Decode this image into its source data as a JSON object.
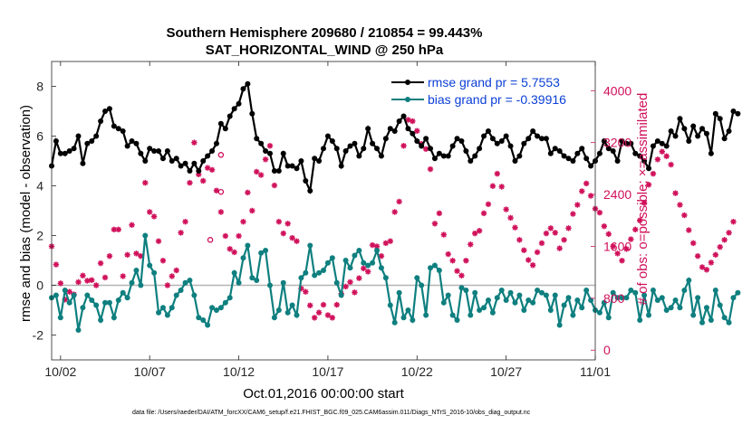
{
  "chart_data": {
    "type": "line",
    "title": "Southern Hemisphere 209680 / 210854 = 99.443%",
    "subtitle": "SAT_HORIZONTAL_WIND @ 250 hPa",
    "xlabel": "Oct.01,2016 00:00:00 start",
    "ylabel": "rmse and bias (model - observation)",
    "ylabel_right": "# of obs: o=possible; ×=assimilated",
    "footnote": "data file: /Users/raeder/DAI/ATM_forcXX/CAM6_setup/f.e21.FHIST_BGC.f09_025.CAM6assim.011/Diags_NTrS_2016-10/obs_diag_output.nc",
    "x_ticks": [
      "10/02",
      "10/07",
      "10/12",
      "10/17",
      "10/22",
      "10/27",
      "11/01"
    ],
    "x_tick_days": [
      1,
      6,
      11,
      16,
      21,
      26,
      31
    ],
    "xlim": [
      0.5,
      31
    ],
    "y_ticks": [
      -2,
      0,
      2,
      4,
      6,
      8
    ],
    "ylim": [
      -3,
      9
    ],
    "y2_ticks": [
      0,
      800,
      1600,
      2400,
      3200,
      4000
    ],
    "ylim2": [
      -150,
      4450
    ],
    "zero_line": true,
    "legend": [
      {
        "label": "rmse grand pr = 5.7553",
        "color": "#000000"
      },
      {
        "label": "bias grand pr = -0.39916",
        "color": "#0f7f7f"
      }
    ],
    "colors": {
      "rmse": "#000000",
      "bias": "#0f7f7f",
      "obs": "#d0105a",
      "axis_right": "#d0105a",
      "legend_text": "#0b3fd6"
    },
    "series": [
      {
        "name": "rmse grand pr = 5.7553",
        "x_start_day": 0.5,
        "dx": 0.25,
        "values": [
          4.8,
          5.8,
          5.3,
          5.3,
          5.4,
          5.5,
          6.0,
          4.9,
          5.7,
          5.8,
          6.0,
          6.6,
          7.0,
          7.1,
          6.4,
          6.3,
          6.2,
          5.6,
          5.8,
          5.7,
          5.3,
          5.0,
          5.5,
          5.4,
          5.4,
          5.1,
          5.4,
          5.0,
          5.1,
          4.8,
          4.9,
          4.6,
          4.9,
          4.6,
          5.0,
          5.2,
          5.4,
          5.7,
          6.5,
          6.3,
          6.8,
          7.1,
          7.3,
          7.9,
          8.1,
          6.9,
          5.9,
          5.7,
          5.4,
          5.3,
          4.6,
          4.6,
          5.3,
          4.8,
          4.8,
          4.7,
          5.0,
          4.2,
          3.8,
          5.1,
          5.0,
          5.5,
          6.0,
          5.8,
          5.5,
          4.8,
          5.4,
          5.6,
          5.7,
          5.2,
          5.5,
          6.3,
          5.7,
          5.5,
          5.2,
          5.9,
          6.3,
          6.2,
          6.6,
          6.8,
          6.3,
          6.1,
          5.8,
          5.6,
          5.9,
          5.5,
          5.1,
          5.3,
          5.2,
          5.2,
          5.6,
          5.9,
          5.8,
          5.4,
          5.0,
          5.2,
          5.5,
          6.0,
          6.2,
          5.9,
          5.7,
          5.8,
          6.0,
          5.6,
          5.0,
          5.2,
          5.7,
          5.9,
          6.2,
          6.0,
          5.9,
          5.9,
          5.3,
          5.5,
          5.4,
          5.2,
          5.1,
          5.0,
          5.3,
          5.5,
          5.1,
          4.8,
          5.0,
          5.3,
          5.8,
          5.5,
          5.4,
          5.0,
          5.8,
          5.7,
          5.7,
          5.3,
          5.2,
          5.0,
          4.7,
          5.6,
          5.8,
          5.7,
          5.6,
          6.2,
          6.0,
          6.7,
          6.3,
          5.8,
          6.4,
          6.0,
          6.3,
          6.1,
          5.3,
          6.9,
          6.7,
          5.9,
          6.2,
          7.0,
          6.9
        ]
      },
      {
        "name": "bias grand pr = -0.39916",
        "x_start_day": 0.5,
        "dx": 0.25,
        "values": [
          -0.5,
          -0.4,
          -1.3,
          -0.2,
          -0.7,
          -0.4,
          -1.8,
          -0.9,
          -0.4,
          -0.6,
          -0.8,
          -1.4,
          -0.7,
          -0.7,
          -1.3,
          -0.6,
          -0.3,
          -0.5,
          0.1,
          0.6,
          0.0,
          2.0,
          0.8,
          0.5,
          -1.1,
          -0.9,
          -1.2,
          -0.9,
          -0.4,
          -0.2,
          0.1,
          0.2,
          -0.4,
          -1.3,
          -1.4,
          -1.6,
          -0.9,
          -1.0,
          -0.9,
          -0.7,
          -0.5,
          0.5,
          0.1,
          1.1,
          1.6,
          0.3,
          0.2,
          1.3,
          1.4,
          0.0,
          -1.3,
          -1.0,
          0.1,
          -1.1,
          -0.8,
          -1.2,
          0.3,
          0.5,
          1.6,
          0.4,
          0.5,
          0.6,
          0.9,
          1.1,
          0.1,
          -0.4,
          1.0,
          0.7,
          1.2,
          1.4,
          0.9,
          0.8,
          0.9,
          1.4,
          0.7,
          0.3,
          -0.8,
          -1.5,
          -0.3,
          -1.3,
          -1.0,
          -1.4,
          0.3,
          0.0,
          -1.2,
          0.7,
          0.8,
          0.6,
          -0.7,
          -0.4,
          -1.2,
          -1.4,
          -0.1,
          -0.2,
          -1.2,
          -0.3,
          -1.0,
          -0.9,
          -0.6,
          -1.1,
          -0.5,
          -0.2,
          -0.6,
          -0.3,
          -0.7,
          -0.4,
          -1.0,
          -0.6,
          -0.7,
          -0.2,
          -0.3,
          -0.4,
          -1.0,
          -0.4,
          -1.6,
          -0.8,
          -0.5,
          -1.2,
          -0.6,
          -0.9,
          -0.2,
          -0.6,
          -1.0,
          -1.1,
          -0.7,
          -1.3,
          -0.3,
          -0.5,
          -0.5,
          -0.5,
          -0.2,
          -0.3,
          -1.4,
          -0.4,
          -1.2,
          -0.2,
          -0.6,
          -0.5,
          -1.0,
          -0.9,
          -0.6,
          -0.9,
          -0.2,
          0.2,
          -1.2,
          -0.5,
          -1.5,
          -0.9,
          -1.4,
          -0.2,
          -0.8,
          -1.3,
          -1.5,
          -0.5,
          -0.3
        ]
      },
      {
        "name": "# of obs assimilated",
        "x_start_day": 0.5,
        "dx": 0.25,
        "values": [
          1600,
          1320,
          1030,
          780,
          900,
          860,
          1050,
          1150,
          1070,
          1080,
          1000,
          1340,
          1120,
          1450,
          1860,
          1860,
          1140,
          1470,
          1930,
          1490,
          1450,
          2580,
          2130,
          2060,
          1680,
          1380,
          1000,
          1140,
          1230,
          1810,
          1980,
          2580,
          3200,
          2710,
          2610,
          2810,
          2780,
          2460,
          2130,
          1760,
          1560,
          1510,
          1760,
          1980,
          2430,
          2150,
          2750,
          2700,
          2940,
          3150,
          2540,
          1980,
          1800,
          1950,
          1730,
          1680,
          950,
          900,
          690,
          500,
          580,
          700,
          540,
          500,
          700,
          870,
          980,
          1050,
          890,
          1110,
          1260,
          1210,
          1620,
          1600,
          1450,
          1650,
          1680,
          2130,
          2290,
          3150,
          3550,
          3530,
          3380,
          3180,
          3100,
          2790,
          1950,
          2110,
          1780,
          1480,
          1380,
          1220,
          1150,
          1380,
          1630,
          1800,
          1840,
          2110,
          2250,
          2530,
          2720,
          2520,
          2170,
          2040,
          1890,
          1700,
          1540,
          1390,
          1310,
          1510,
          1650,
          1800,
          1880,
          1810,
          1570,
          1700,
          1880,
          2100,
          2240,
          2450,
          2570,
          2380,
          2180,
          2120,
          1910,
          1790,
          1600,
          1490,
          1380,
          1560,
          1710,
          1860,
          2000,
          2270,
          2550,
          2720,
          2940,
          3060,
          2990,
          2860,
          2420,
          2240,
          2080,
          1850,
          1650,
          1450,
          1280,
          1240,
          1350,
          1470,
          1590,
          1700,
          1810,
          1980
        ]
      }
    ],
    "possible_markers": [
      {
        "x": 10.0,
        "y": 3010
      },
      {
        "x": 10.0,
        "y": 2440
      },
      {
        "x": 9.4,
        "y": 1700
      }
    ]
  }
}
